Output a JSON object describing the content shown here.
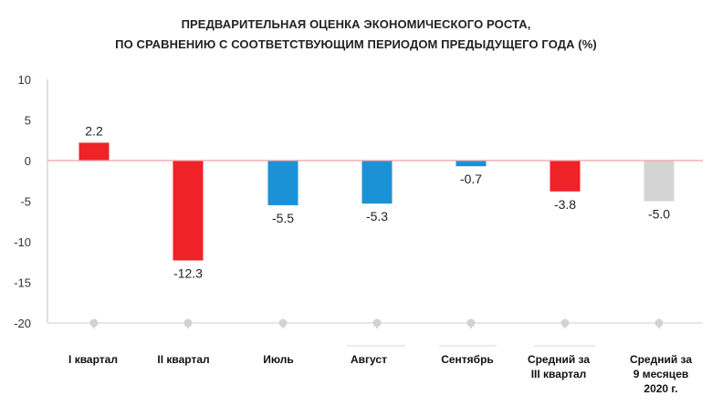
{
  "chart_data": {
    "type": "bar",
    "title": "ПРЕДВАРИТЕЛЬНАЯ ОЦЕНКА ЭКОНОМИЧЕСКОГО РОСТА,",
    "subtitle": "ПО СРАВНЕНИЮ С СООТВЕТСТВУЮЩИМ ПЕРИОДОМ ПРЕДЫДУЩЕГО ГОДА (%)",
    "categories": [
      [
        "I квартал"
      ],
      [
        "II квартал"
      ],
      [
        "Июль"
      ],
      [
        "Август"
      ],
      [
        "Сентябрь"
      ],
      [
        "Средний за",
        "III квартал"
      ],
      [
        "Средний за",
        "9 месяцев",
        "2020 г."
      ]
    ],
    "values": [
      2.2,
      -12.3,
      -5.5,
      -5.3,
      -0.7,
      -3.8,
      -5.0
    ],
    "data_labels": [
      "2.2",
      "-12.3",
      "-5.5",
      "-5.3",
      "-0.7",
      "-3.8",
      "-5.0"
    ],
    "bar_colors": [
      "#ee2227",
      "#ee2227",
      "#1b92d6",
      "#1b92d6",
      "#1b92d6",
      "#ee2227",
      "#d4d4d4"
    ],
    "ylim": [
      -20,
      10
    ],
    "yticks": [
      10,
      5,
      0,
      -5,
      -10,
      -15,
      -20
    ],
    "zero_line_color": "#f2a0a3",
    "grid": false,
    "xlabel": "",
    "ylabel": ""
  }
}
